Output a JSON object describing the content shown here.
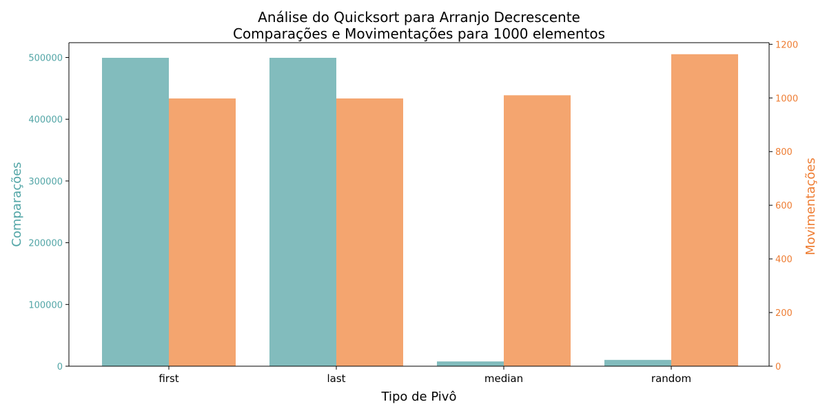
{
  "chart_data": {
    "type": "bar",
    "title_line1": "Análise do Quicksort para Arranjo Decrescente",
    "title_line2": "Comparações e Movimentações para 1000 elementos",
    "xlabel": "Tipo de Pivô",
    "ylabel_left": "Comparações",
    "ylabel_right": "Movimentações",
    "categories": [
      "first",
      "last",
      "median",
      "random"
    ],
    "series": [
      {
        "name": "Comparações",
        "axis": "left",
        "color": "#82bcbd",
        "values": [
          499500,
          499500,
          7700,
          10200
        ]
      },
      {
        "name": "Movimentações",
        "axis": "right",
        "color": "#f4a56f",
        "values": [
          998,
          998,
          1010,
          1163
        ]
      }
    ],
    "ylim_left": [
      0,
      524000
    ],
    "ylim_right": [
      0,
      1206
    ],
    "yticks_left": [
      "0",
      "100000",
      "200000",
      "300000",
      "400000",
      "500000"
    ],
    "yticks_right": [
      "0",
      "200",
      "400",
      "600",
      "800",
      "1000",
      "1200"
    ],
    "left_axis_color": "#52a5a6",
    "right_axis_color": "#ee7d33",
    "grid": false,
    "legend": "none"
  }
}
